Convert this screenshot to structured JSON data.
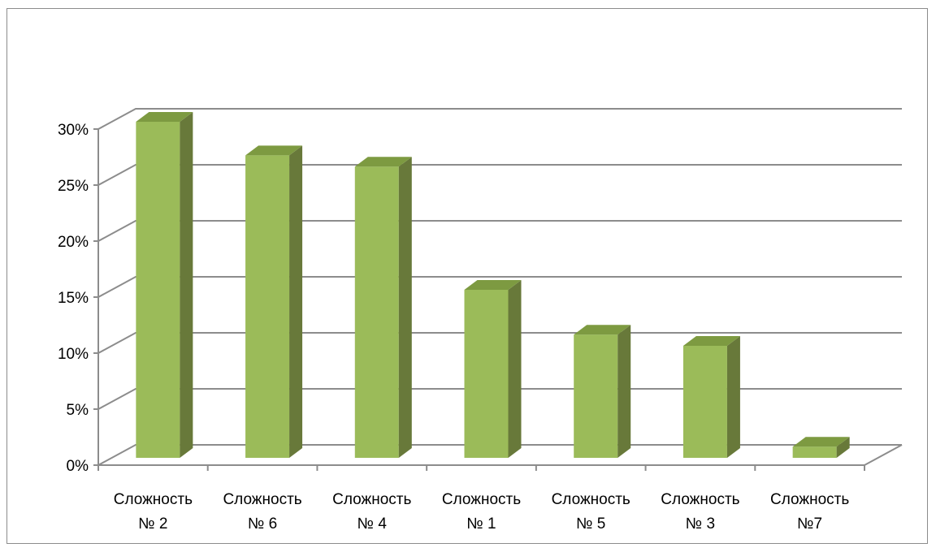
{
  "chart_data": {
    "type": "bar",
    "style": "3d-column",
    "categories": [
      [
        "Сложность",
        "№ 2"
      ],
      [
        "Сложность",
        "№ 6"
      ],
      [
        "Сложность",
        "№ 4"
      ],
      [
        "Сложность",
        "№ 1"
      ],
      [
        "Сложность",
        "№ 5"
      ],
      [
        "Сложность",
        "№ 3"
      ],
      [
        "Сложность",
        "№7"
      ]
    ],
    "values": [
      30,
      27,
      26,
      15,
      11,
      10,
      1
    ],
    "yticks": [
      "0%",
      "5%",
      "10%",
      "15%",
      "20%",
      "25%",
      "30%"
    ],
    "ylim": [
      0,
      30
    ],
    "grid": true,
    "legend": "none",
    "title": "",
    "xlabel": "",
    "ylabel": "",
    "colors": {
      "bar_front": "#9bbb59",
      "bar_side": "#68793a",
      "bar_top": "#7d9a41",
      "grid": "#8c8c8c",
      "frame": "#8c8c8c"
    }
  }
}
